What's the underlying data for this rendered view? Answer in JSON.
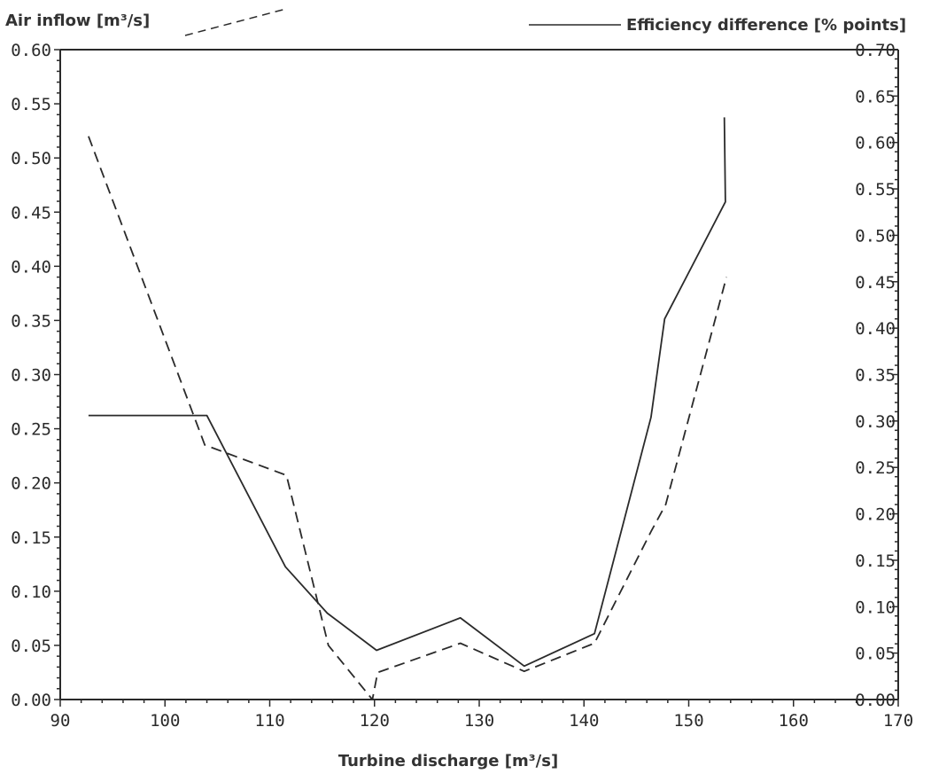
{
  "chart_data": {
    "type": "line",
    "title": "",
    "xlabel": "Turbine discharge [m³/s]",
    "ylabel_left": "Air inflow [m³/s]",
    "ylabel_right": "Efficiency difference [% points]",
    "xlim": [
      90,
      170
    ],
    "ylim_left": [
      0,
      0.6
    ],
    "ylim_right": [
      0,
      0.7
    ],
    "x_ticks": [
      "90",
      "100",
      "110",
      "120",
      "130",
      "140",
      "150",
      "160",
      "170"
    ],
    "y_left_ticks": [
      "0.00",
      "0.05",
      "0.10",
      "0.15",
      "0.20",
      "0.25",
      "0.30",
      "0.35",
      "0.40",
      "0.45",
      "0.50",
      "0.55",
      "0.60"
    ],
    "y_right_ticks": [
      "0.00",
      "0.05",
      "0.10",
      "0.15",
      "0.20",
      "0.25",
      "0.30",
      "0.35",
      "0.40",
      "0.45",
      "0.50",
      "0.55",
      "0.60",
      "0.65",
      "0.70"
    ],
    "grid": false,
    "legend": "top",
    "series": [
      {
        "axis": "left",
        "style": "dashed",
        "points": [
          [
            92.7,
            0.52
          ],
          [
            103.8,
            0.235
          ],
          [
            111.6,
            0.207
          ],
          [
            115.6,
            0.05
          ],
          [
            119.8,
            0.0
          ],
          [
            120.3,
            0.025
          ],
          [
            128.2,
            0.052
          ],
          [
            134.3,
            0.026
          ],
          [
            141.0,
            0.052
          ],
          [
            146.4,
            0.155
          ],
          [
            147.8,
            0.18
          ],
          [
            153.6,
            0.39
          ]
        ]
      },
      {
        "axis": "right",
        "name": "Efficiency difference [% points]",
        "style": "solid",
        "points": [
          [
            92.7,
            0.306
          ],
          [
            104.0,
            0.306
          ],
          [
            111.5,
            0.143
          ],
          [
            115.5,
            0.093
          ],
          [
            120.2,
            0.053
          ],
          [
            128.2,
            0.088
          ],
          [
            134.3,
            0.036
          ],
          [
            141.0,
            0.071
          ],
          [
            146.4,
            0.304
          ],
          [
            147.7,
            0.41
          ],
          [
            153.5,
            0.536
          ],
          [
            153.4,
            0.627
          ]
        ]
      }
    ]
  }
}
